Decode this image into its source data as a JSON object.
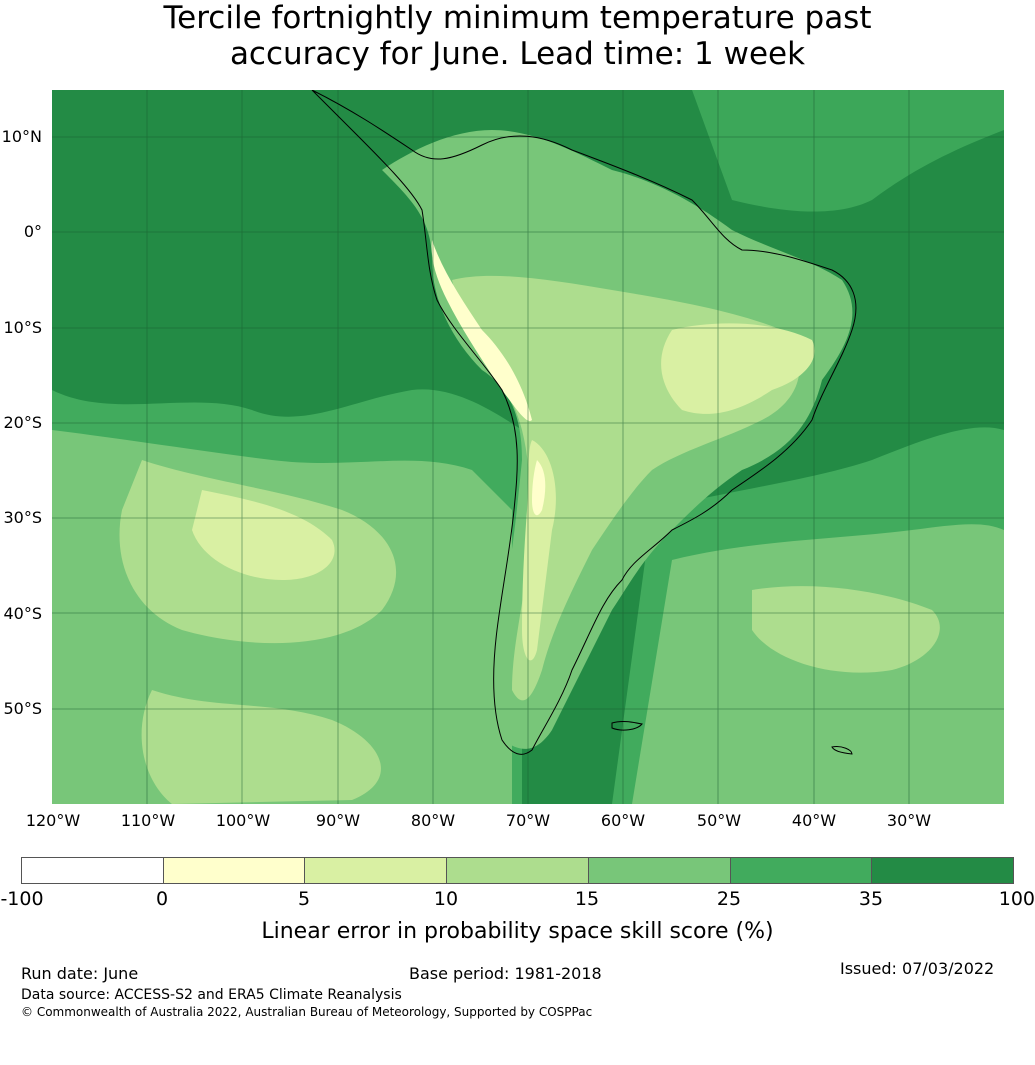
{
  "title": {
    "line1": "Tercile fortnightly minimum temperature past",
    "line2": "accuracy for June. Lead time: 1 week"
  },
  "map": {
    "lat_labels": [
      "10°N",
      "0°",
      "10°S",
      "20°S",
      "30°S",
      "40°S",
      "50°S"
    ],
    "lon_labels": [
      "120°W",
      "110°W",
      "100°W",
      "90°W",
      "80°W",
      "70°W",
      "60°W",
      "50°W",
      "40°W",
      "30°W"
    ],
    "extent": {
      "lon": [
        -120,
        -20
      ],
      "lat": [
        -60,
        15
      ]
    }
  },
  "colorbar": {
    "ticks": [
      "-100",
      "0",
      "5",
      "10",
      "15",
      "25",
      "35",
      "100"
    ],
    "colors": [
      "#ffffff",
      "#ffffcc",
      "#d9f0a3",
      "#addd8e",
      "#78c679",
      "#41ab5d",
      "#238b45"
    ],
    "label": "Linear error in probability space skill score (%)"
  },
  "footer": {
    "run_date": "Run date: June",
    "base_period": "Base period: 1981-2018",
    "issued": "Issued: 07/03/2022",
    "data_source": "Data source: ACCESS-S2 and ERA5 Climate Reanalysis",
    "copyright": "© Commonwealth of Australia 2022, Australian Bureau of Meteorology, Supported by COSPPac"
  }
}
